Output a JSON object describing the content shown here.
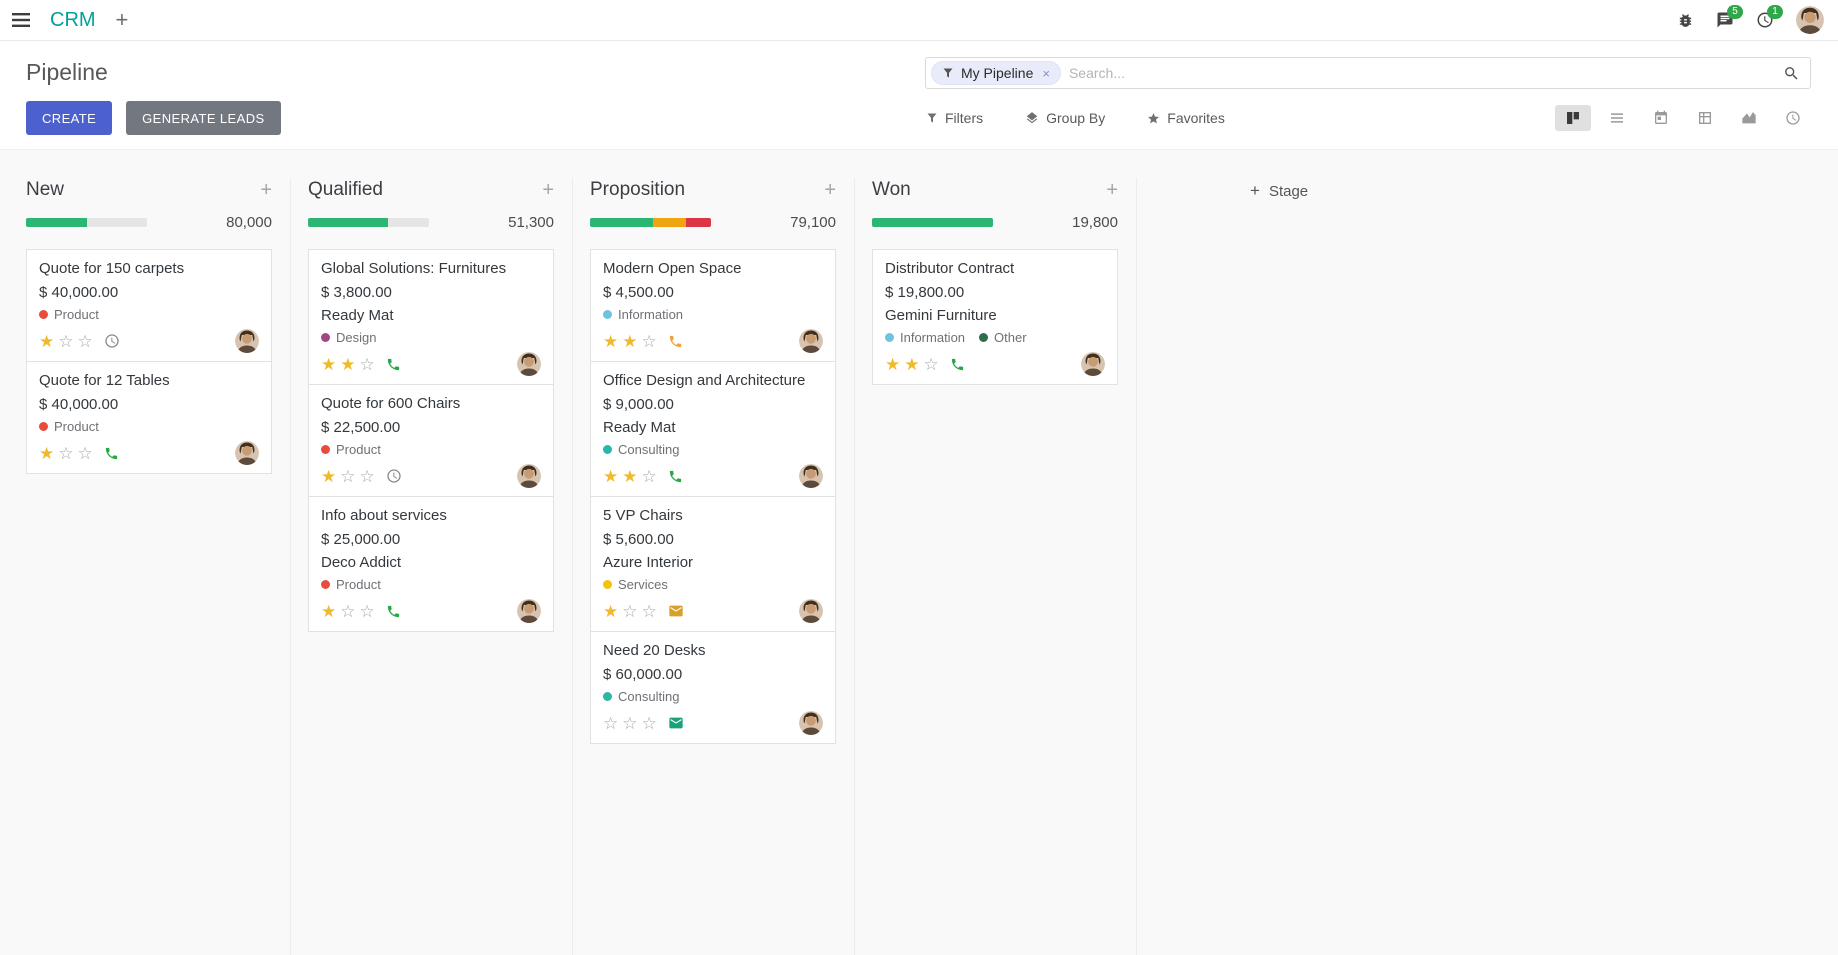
{
  "colors": {
    "primary": "#4d61ce",
    "brand": "#00a09d",
    "success": "#2bb673",
    "warning": "#efa510",
    "danger": "#dc3545",
    "star_gold": "#eebb2d",
    "badge_green": "#31a74b"
  },
  "navbar": {
    "app": "CRM",
    "messages_badge": "5",
    "activities_badge": "1"
  },
  "control_panel": {
    "title": "Pipeline",
    "create_label": "CREATE",
    "generate_leads_label": "GENERATE LEADS",
    "search": {
      "facet_label": "My Pipeline",
      "remove_label": "×",
      "placeholder": "Search..."
    },
    "menus": {
      "filters": "Filters",
      "group_by": "Group By",
      "favorites": "Favorites"
    },
    "views": [
      "kanban",
      "list",
      "calendar",
      "pivot",
      "graph",
      "activity"
    ]
  },
  "board": {
    "add_stage": "Stage",
    "columns": [
      {
        "title": "New",
        "counter": "80,000",
        "progress": [
          {
            "color": "#2bb673",
            "pct": 50
          }
        ],
        "cards": [
          {
            "title": "Quote for 150 carpets",
            "amount": "$ 40,000.00",
            "tags": [
              {
                "label": "Product",
                "color": "#e74c3c"
              }
            ],
            "priority": 1,
            "activity": {
              "type": "clock",
              "color": "#8a8a8a"
            }
          },
          {
            "title": "Quote for 12 Tables",
            "amount": "$ 40,000.00",
            "tags": [
              {
                "label": "Product",
                "color": "#e74c3c"
              }
            ],
            "priority": 1,
            "activity": {
              "type": "phone",
              "color": "#28a745"
            }
          }
        ]
      },
      {
        "title": "Qualified",
        "counter": "51,300",
        "progress": [
          {
            "color": "#2bb673",
            "pct": 66
          }
        ],
        "cards": [
          {
            "title": "Global Solutions: Furnitures",
            "amount": "$ 3,800.00",
            "partner": "Ready Mat",
            "tags": [
              {
                "label": "Design",
                "color": "#a24689"
              }
            ],
            "priority": 2,
            "activity": {
              "type": "phone",
              "color": "#28a745"
            }
          },
          {
            "title": "Quote for 600 Chairs",
            "amount": "$ 22,500.00",
            "tags": [
              {
                "label": "Product",
                "color": "#e74c3c"
              }
            ],
            "priority": 1,
            "activity": {
              "type": "clock",
              "color": "#8a8a8a"
            }
          },
          {
            "title": "Info about services",
            "amount": "$ 25,000.00",
            "partner": "Deco Addict",
            "tags": [
              {
                "label": "Product",
                "color": "#e74c3c"
              }
            ],
            "priority": 1,
            "activity": {
              "type": "phone",
              "color": "#28a745"
            }
          }
        ]
      },
      {
        "title": "Proposition",
        "counter": "79,100",
        "progress": [
          {
            "color": "#2bb673",
            "pct": 52
          },
          {
            "color": "#efa510",
            "pct": 27
          },
          {
            "color": "#dc3545",
            "pct": 21
          }
        ],
        "cards": [
          {
            "title": "Modern Open Space",
            "amount": "$ 4,500.00",
            "tags": [
              {
                "label": "Information",
                "color": "#6ec3e0"
              }
            ],
            "priority": 2,
            "activity": {
              "type": "phone",
              "color": "#f0a13c"
            }
          },
          {
            "title": "Office Design and Architecture",
            "amount": "$ 9,000.00",
            "partner": "Ready Mat",
            "tags": [
              {
                "label": "Consulting",
                "color": "#2ab7a9"
              }
            ],
            "priority": 2,
            "activity": {
              "type": "phone",
              "color": "#28a745"
            }
          },
          {
            "title": "5 VP Chairs",
            "amount": "$ 5,600.00",
            "partner": "Azure Interior",
            "tags": [
              {
                "label": "Services",
                "color": "#f4c20d"
              }
            ],
            "priority": 1,
            "activity": {
              "type": "envelope",
              "color": "#d7a029"
            }
          },
          {
            "title": "Need 20 Desks",
            "amount": "$ 60,000.00",
            "tags": [
              {
                "label": "Consulting",
                "color": "#2ab7a9"
              }
            ],
            "priority": 0,
            "activity": {
              "type": "envelope",
              "color": "#1aa37a"
            }
          }
        ]
      },
      {
        "title": "Won",
        "counter": "19,800",
        "progress": [
          {
            "color": "#2bb673",
            "pct": 100
          }
        ],
        "cards": [
          {
            "title": "Distributor Contract",
            "amount": "$ 19,800.00",
            "partner": "Gemini Furniture",
            "tags": [
              {
                "label": "Information",
                "color": "#6ec3e0"
              },
              {
                "label": "Other",
                "color": "#2f6d4f"
              }
            ],
            "priority": 2,
            "activity": {
              "type": "phone",
              "color": "#28a745"
            }
          }
        ]
      }
    ]
  }
}
